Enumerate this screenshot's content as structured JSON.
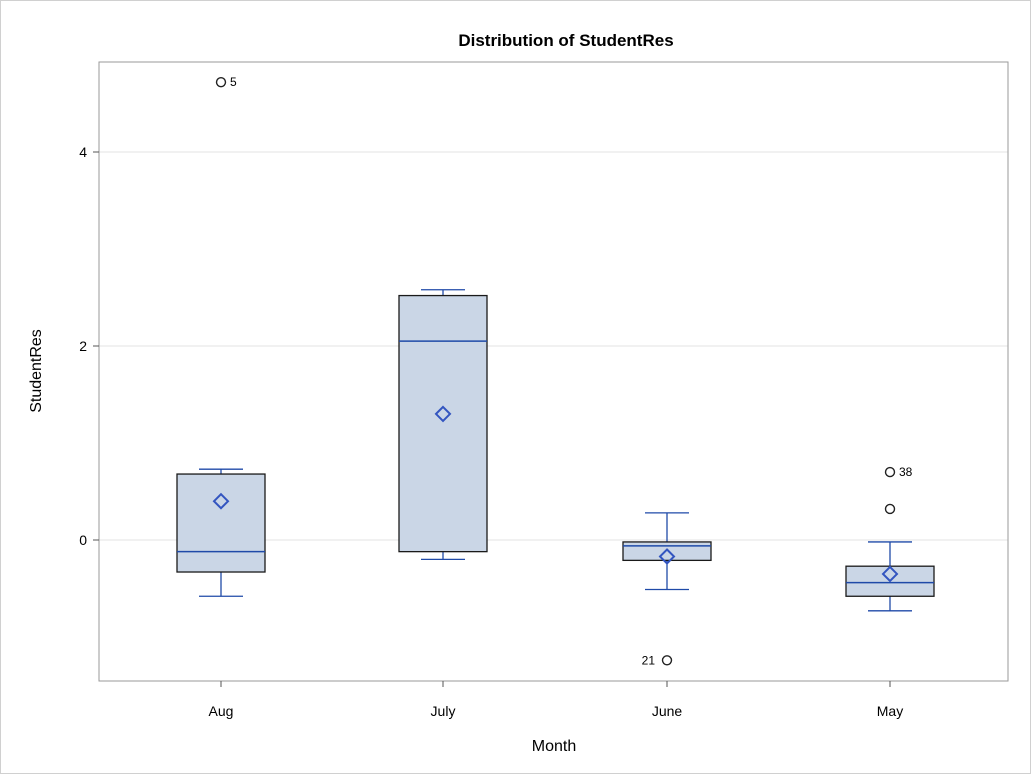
{
  "chart_data": {
    "type": "box",
    "title": "Distribution of StudentRes",
    "xlabel": "Month",
    "ylabel": "StudentRes",
    "ylim": [
      -1.45,
      4.95
    ],
    "yticks": [
      0,
      2,
      4
    ],
    "grid": true,
    "categories": [
      "Aug",
      "July",
      "June",
      "May"
    ],
    "boxes": [
      {
        "category": "Aug",
        "whisker_low": -0.58,
        "q1": -0.33,
        "median": -0.12,
        "q3": 0.68,
        "whisker_high": 0.73,
        "mean": 0.4,
        "outliers": [
          {
            "value": 4.72,
            "label": "5",
            "label_side": "right"
          }
        ]
      },
      {
        "category": "July",
        "whisker_low": -0.2,
        "q1": -0.12,
        "median": 2.05,
        "q3": 2.52,
        "whisker_high": 2.58,
        "mean": 1.3,
        "outliers": []
      },
      {
        "category": "June",
        "whisker_low": -0.51,
        "q1": -0.21,
        "median": -0.06,
        "q3": -0.02,
        "whisker_high": 0.28,
        "mean": -0.17,
        "outliers": [
          {
            "value": -1.24,
            "label": "21",
            "label_side": "left"
          }
        ]
      },
      {
        "category": "May",
        "whisker_low": -0.73,
        "q1": -0.58,
        "median": -0.44,
        "q3": -0.27,
        "whisker_high": -0.02,
        "mean": -0.35,
        "outliers": [
          {
            "value": 0.32,
            "label": "",
            "label_side": "right"
          },
          {
            "value": 0.7,
            "label": "38",
            "label_side": "right"
          }
        ]
      }
    ],
    "colors": {
      "box_fill": "#cad6e6",
      "box_edge": "#1a1a1a",
      "median_line": "#1f4aa8",
      "whisker": "#1f4aa8",
      "mean_marker": "#3355c0",
      "outlier": "#222222",
      "grid": "#e3e3e3",
      "frame": "#9a9a9a"
    }
  }
}
